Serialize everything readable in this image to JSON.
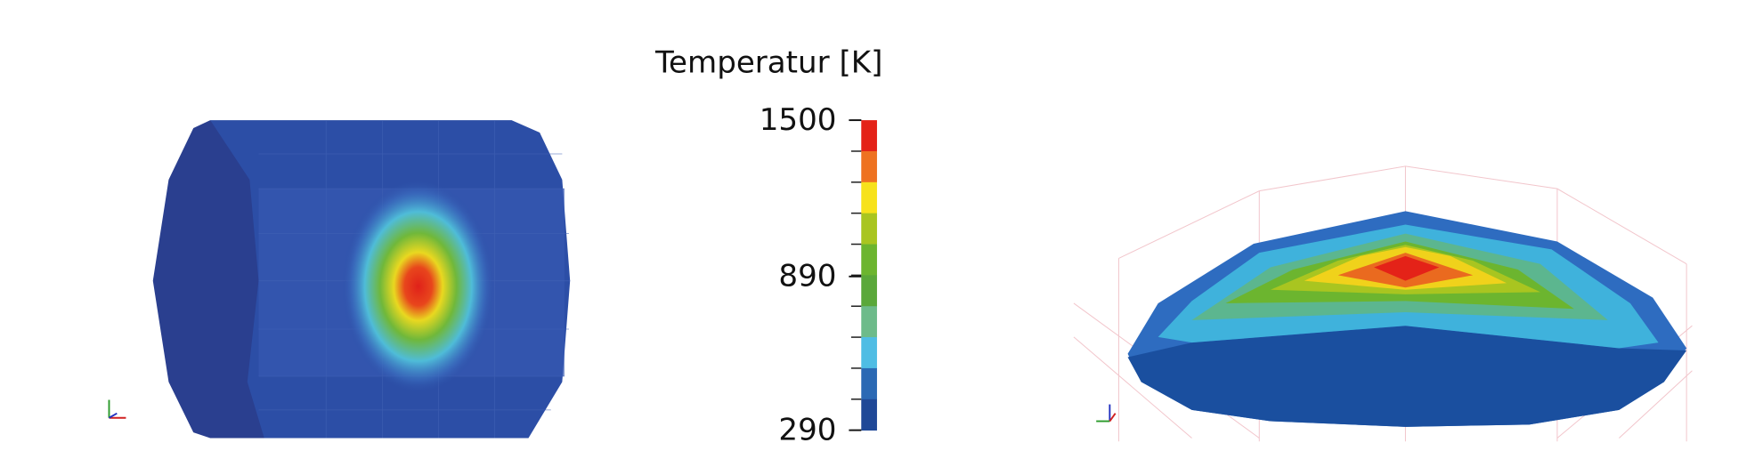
{
  "chart_data": {
    "type": "colorbar",
    "title": "Temperatur [K]",
    "lim": [
      290,
      1500
    ],
    "ticks": [
      290,
      890,
      1500
    ],
    "colors": [
      "#e42218",
      "#ee7221",
      "#f7e21b",
      "#a9c520",
      "#6cb52f",
      "#5aa83a",
      "#6dbb8a",
      "#4fbde4",
      "#2b69b4",
      "#1f4897"
    ]
  }
}
